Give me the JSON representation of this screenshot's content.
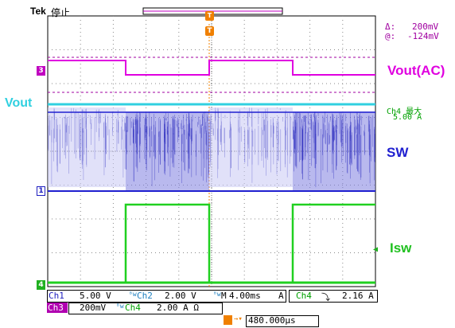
{
  "header": {
    "brand": "Tek",
    "status": "停止"
  },
  "cursor_readout": {
    "delta_symbol": "Δ:",
    "delta_value": "200mV",
    "at_symbol": "@:",
    "at_value": "-124mV"
  },
  "labels": {
    "vout_ac": "Vout(AC)",
    "vout": "Vout",
    "ch4_max_title": "Ch4 最大",
    "ch4_max_value": "5.00 A",
    "sw": "SW",
    "isw": "Isw"
  },
  "markers": {
    "ch3": "3",
    "ch1": "1",
    "ch4": "4",
    "trigger": "T"
  },
  "channels": {
    "ch1_name": "Ch1",
    "ch1_scale": "5.00 V",
    "ch2_name": "Ch2",
    "ch2_scale": "2.00 V",
    "ch3_name": "Ch3",
    "ch3_scale": "200mV",
    "ch4_name": "Ch4",
    "ch4_scale": "2.00 A Ω"
  },
  "timebase": {
    "label": "M",
    "value": "4.00ms",
    "unit": "A"
  },
  "trigger": {
    "source": "Ch4",
    "slope": "⤵",
    "level": "2.16 A"
  },
  "horizontal_position": {
    "value": "480.000µs"
  },
  "colors": {
    "vout_ac": "#e000e0",
    "vout": "#30d0e0",
    "sw": "#2020d0",
    "isw": "#20d020",
    "trigger": "#f08000"
  }
}
